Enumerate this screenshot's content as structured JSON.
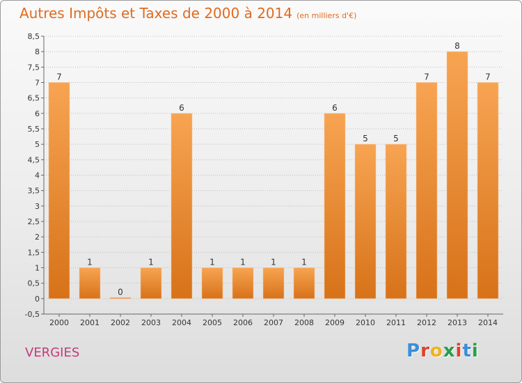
{
  "page": {
    "title": "Autres Impôts et Taxes de 2000 à 2014",
    "subtitle": "(en milliers d'€)",
    "location": "VERGIES",
    "logo_text": "Proxiti",
    "logo_colors": [
      "#3a8fd8",
      "#e0402a",
      "#f2b11c",
      "#2a9d4a",
      "#e0402a",
      "#3a8fd8",
      "#2a9d4a"
    ]
  },
  "colors": {
    "title": "#e16a1d",
    "location": "#c43a7a",
    "bar_top": "#f7a452",
    "bar_bottom": "#d77219",
    "grid": "#bfbfbf",
    "axis_text": "#333333"
  },
  "chart_data": {
    "type": "bar",
    "title": "Autres Impôts et Taxes de 2000 à 2014",
    "subtitle": "(en milliers d'€)",
    "categories": [
      "2000",
      "2001",
      "2002",
      "2003",
      "2004",
      "2005",
      "2006",
      "2007",
      "2008",
      "2009",
      "2010",
      "2011",
      "2012",
      "2013",
      "2014"
    ],
    "values": [
      7,
      1,
      0,
      1,
      6,
      1,
      1,
      1,
      1,
      6,
      5,
      5,
      7,
      8,
      7
    ],
    "data_labels": [
      "7",
      "1",
      "0",
      "1",
      "6",
      "1",
      "1",
      "1",
      "1",
      "6",
      "5",
      "5",
      "7",
      "8",
      "7"
    ],
    "y_ticks": [
      -0.5,
      0,
      0.5,
      1,
      1.5,
      2,
      2.5,
      3,
      3.5,
      4,
      4.5,
      5,
      5.5,
      6,
      6.5,
      7,
      7.5,
      8,
      8.5
    ],
    "y_tick_labels": [
      "-0,5",
      "0",
      "0,5",
      "1",
      "1,5",
      "2",
      "2,5",
      "3",
      "3,5",
      "4",
      "4,5",
      "5",
      "5,5",
      "6",
      "6,5",
      "7",
      "7,5",
      "8",
      "8,5"
    ],
    "ylim": [
      -0.5,
      8.5
    ],
    "xlabel": "",
    "ylabel": "",
    "grid": true,
    "legend": "none"
  }
}
